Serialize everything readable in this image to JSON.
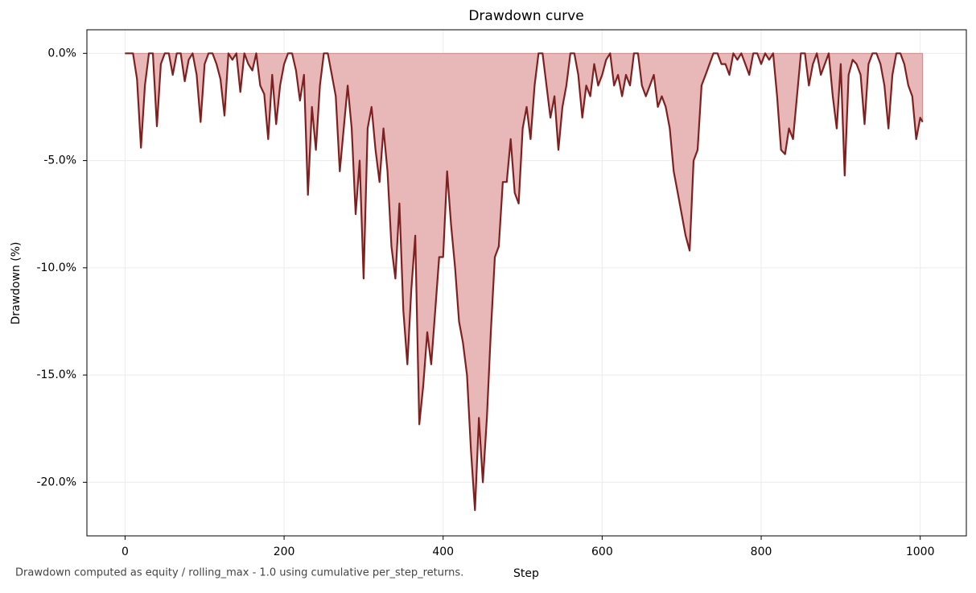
{
  "chart_data": {
    "type": "area",
    "title": "Drawdown curve",
    "x_label": "Step",
    "y_label": "Drawdown (%)",
    "note": "Drawdown computed as equity / rolling_max - 1.0 using cumulative per_step_returns.",
    "x": [
      0,
      5,
      10,
      15,
      20,
      25,
      30,
      35,
      40,
      45,
      50,
      55,
      60,
      65,
      70,
      75,
      80,
      85,
      90,
      95,
      100,
      105,
      110,
      115,
      120,
      125,
      130,
      135,
      140,
      145,
      150,
      155,
      160,
      165,
      170,
      175,
      180,
      185,
      190,
      195,
      200,
      205,
      210,
      215,
      220,
      225,
      230,
      235,
      240,
      245,
      250,
      255,
      260,
      265,
      270,
      275,
      280,
      285,
      290,
      295,
      300,
      305,
      310,
      315,
      320,
      325,
      330,
      335,
      340,
      345,
      350,
      355,
      360,
      365,
      370,
      375,
      380,
      385,
      390,
      395,
      400,
      405,
      410,
      415,
      420,
      425,
      430,
      435,
      440,
      445,
      450,
      455,
      460,
      465,
      470,
      475,
      480,
      485,
      490,
      495,
      500,
      505,
      510,
      515,
      520,
      525,
      530,
      535,
      540,
      545,
      550,
      555,
      560,
      565,
      570,
      575,
      580,
      585,
      590,
      595,
      600,
      605,
      610,
      615,
      620,
      625,
      630,
      635,
      640,
      645,
      650,
      655,
      660,
      665,
      670,
      675,
      680,
      685,
      690,
      695,
      700,
      705,
      710,
      715,
      720,
      725,
      730,
      735,
      740,
      745,
      750,
      755,
      760,
      765,
      770,
      775,
      780,
      785,
      790,
      795,
      800,
      805,
      810,
      815,
      820,
      825,
      830,
      835,
      840,
      845,
      850,
      855,
      860,
      865,
      870,
      875,
      880,
      885,
      890,
      895,
      900,
      905,
      910,
      915,
      920,
      925,
      930,
      935,
      940,
      945,
      950,
      955,
      960,
      965,
      970,
      975,
      980,
      985,
      990,
      995,
      1000,
      1003
    ],
    "values": [
      0,
      0,
      0,
      -1.2,
      -4.4,
      -1.5,
      0,
      0,
      -3.4,
      -0.5,
      0,
      0,
      -1,
      0,
      0,
      -1.3,
      -0.3,
      0,
      -1,
      -3.2,
      -0.5,
      0,
      0,
      -0.5,
      -1.2,
      -2.9,
      0,
      -0.3,
      0,
      -1.8,
      0,
      -0.5,
      -0.8,
      0,
      -1.5,
      -1.9,
      -4,
      -1,
      -3.3,
      -1.5,
      -0.5,
      0,
      0,
      -0.8,
      -2.2,
      -1,
      -6.6,
      -2.5,
      -4.5,
      -1.5,
      0,
      0,
      -1,
      -2,
      -5.5,
      -3.5,
      -1.5,
      -3.5,
      -7.5,
      -5,
      -10.5,
      -3.5,
      -2.5,
      -4.5,
      -6,
      -3.5,
      -5.5,
      -9,
      -10.5,
      -7,
      -12,
      -14.5,
      -11,
      -8.5,
      -17.3,
      -15.5,
      -13,
      -14.5,
      -12,
      -9.5,
      -9.5,
      -5.5,
      -8,
      -10,
      -12.5,
      -13.5,
      -15,
      -18.5,
      -21.3,
      -17,
      -20,
      -17,
      -13,
      -9.5,
      -9,
      -6,
      -6,
      -4,
      -6.5,
      -7,
      -3.5,
      -2.5,
      -4,
      -1.5,
      0,
      0,
      -1.5,
      -3,
      -2,
      -4.5,
      -2.5,
      -1.5,
      0,
      0,
      -1,
      -3,
      -1.5,
      -2,
      -0.5,
      -1.5,
      -1,
      -0.3,
      0,
      -1.5,
      -1,
      -2,
      -1,
      -1.5,
      0,
      0,
      -1.5,
      -2,
      -1.5,
      -1,
      -2.5,
      -2,
      -2.5,
      -3.5,
      -5.5,
      -6.5,
      -7.5,
      -8.5,
      -9.2,
      -5,
      -4.5,
      -1.5,
      -1,
      -0.5,
      0,
      0,
      -0.5,
      -0.5,
      -1,
      0,
      -0.3,
      0,
      -0.5,
      -1,
      0,
      0,
      -0.5,
      0,
      -0.3,
      0,
      -2,
      -4.5,
      -4.7,
      -3.5,
      -4,
      -2,
      0,
      0,
      -1.5,
      -0.5,
      0,
      -1,
      -0.5,
      0,
      -2,
      -3.5,
      -0.5,
      -5.7,
      -1,
      -0.3,
      -0.5,
      -1,
      -3.3,
      -0.5,
      0,
      0,
      -0.5,
      -1.5,
      -3.5,
      -1,
      0,
      0,
      -0.5,
      -1.5,
      -2,
      -4,
      -3,
      -3.2
    ],
    "color": "#7f2020",
    "fill_color": "#e8b8b8",
    "xlim": [
      -48,
      1058
    ],
    "ylim": [
      -22.5,
      1.1
    ],
    "xticks": [
      0,
      200,
      400,
      600,
      800,
      1000
    ],
    "yticks": [
      {
        "value": 0,
        "label": "0.0%"
      },
      {
        "value": -5,
        "label": "-5.0%"
      },
      {
        "value": -10,
        "label": "-10.0%"
      },
      {
        "value": -15,
        "label": "-15.0%"
      },
      {
        "value": -20,
        "label": "-20.0%"
      }
    ],
    "grid": true
  }
}
